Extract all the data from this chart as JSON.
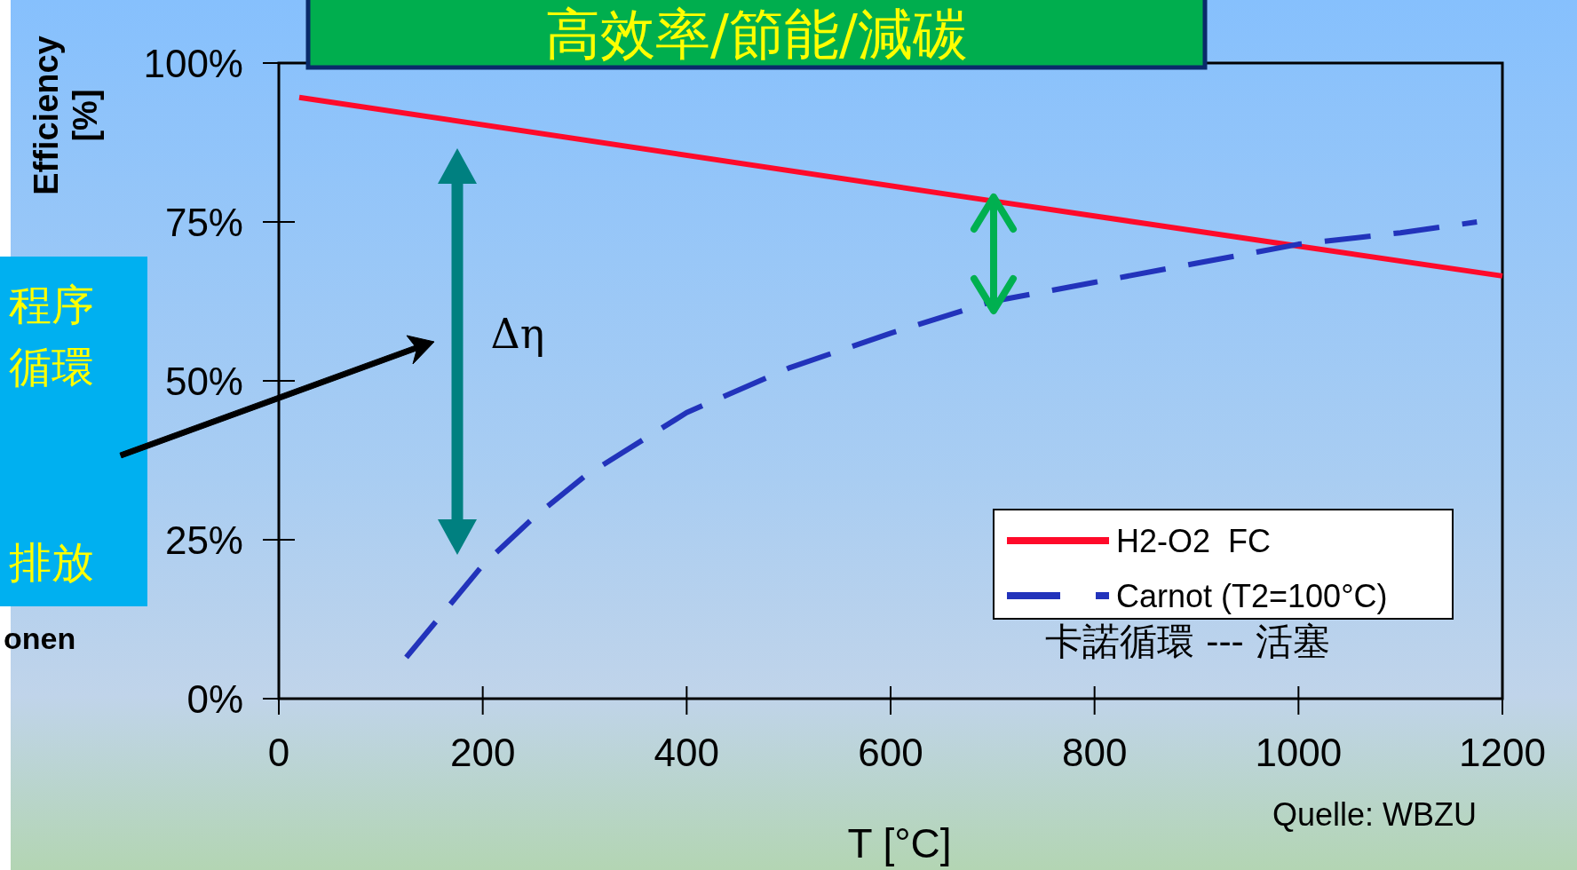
{
  "chart_data": {
    "type": "line",
    "title": "高效率/節能/減碳",
    "xlabel": "T [°C]",
    "ylabel": "Efficiency [%]",
    "xlim": [
      0,
      1200
    ],
    "xticks": [
      0,
      200,
      400,
      600,
      800,
      1000,
      1200
    ],
    "ylim": [
      0,
      100
    ],
    "yticks": [
      {
        "value": 0,
        "label": "0%"
      },
      {
        "value": 25,
        "label": "25%"
      },
      {
        "value": 50,
        "label": "50%"
      },
      {
        "value": 75,
        "label": "75%"
      },
      {
        "value": 100,
        "label": "100%"
      }
    ],
    "grid": false,
    "legend": "bottom right",
    "marker": "none",
    "series": [
      {
        "name": "H2-O2  FC",
        "color": "#ff0a2a",
        "line_style": "solid",
        "x": [
          20,
          700,
          1000,
          1200
        ],
        "values": [
          94.6,
          78.3,
          71.2,
          66.5
        ]
      },
      {
        "name": "Carnot (T2=100°C)",
        "color": "#2233bb",
        "line_style": "dashed",
        "x": [
          125,
          200,
          250,
          300,
          400,
          500,
          600,
          700,
          800,
          900,
          1000,
          1100,
          1175
        ],
        "values": [
          6.5,
          21,
          28.5,
          35,
          45,
          52,
          57.5,
          62.5,
          65.5,
          68.5,
          71.5,
          73.3,
          75
        ]
      }
    ],
    "annotations": [
      "Δη",
      "卡諾循環 --- 活塞",
      "Quelle: WBZU",
      "程序",
      "循環",
      "排放",
      "onen"
    ]
  }
}
